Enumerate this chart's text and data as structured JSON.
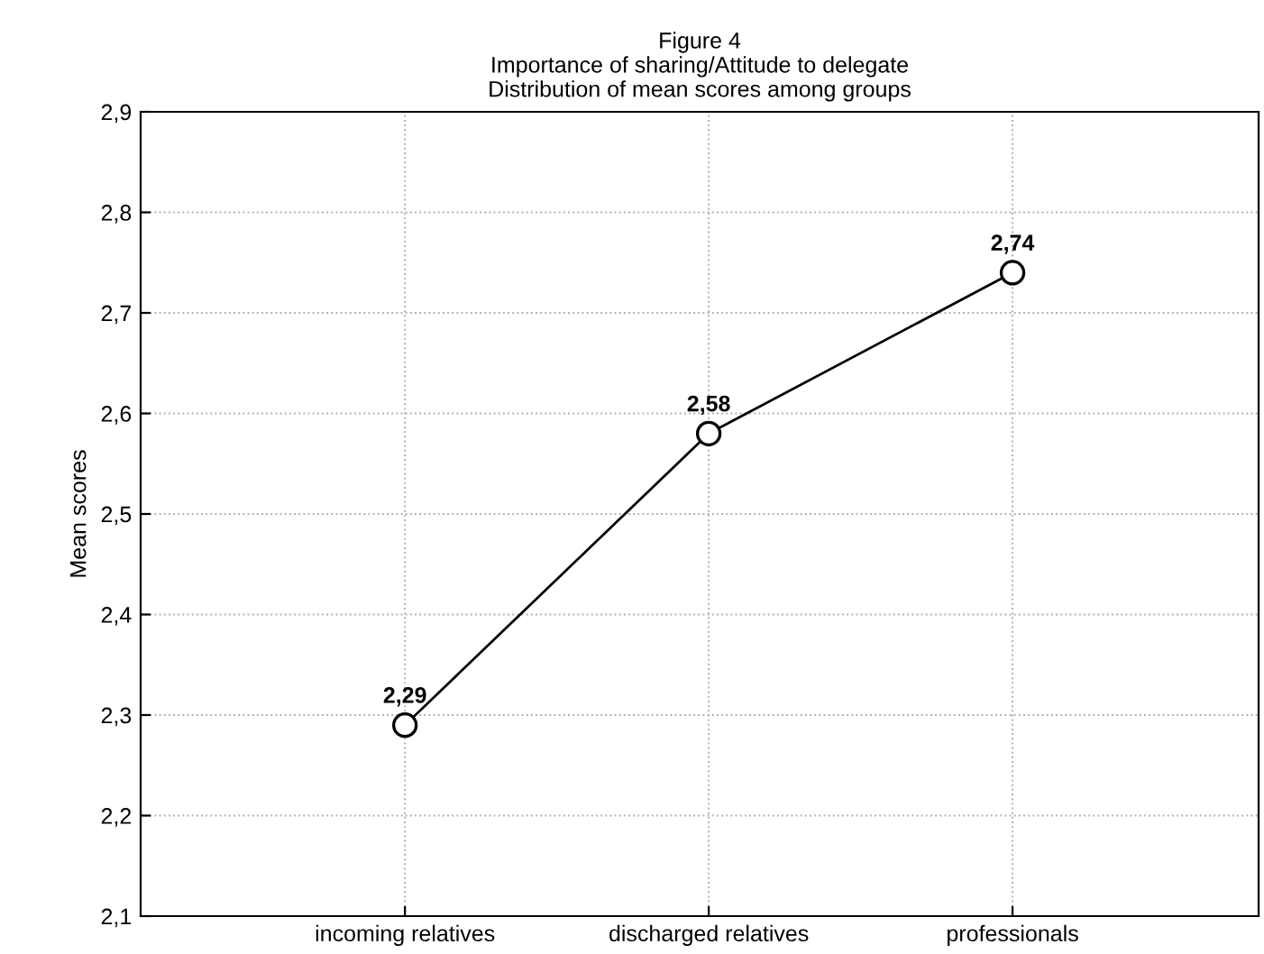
{
  "chart_data": {
    "type": "line",
    "title": "Figure 4\nImportance of sharing/Attitude to delegate\nDistribution of mean scores among groups",
    "ylabel": "Mean scores",
    "categories": [
      "incoming relatives",
      "discharged relatives",
      "professionals"
    ],
    "series": [
      {
        "color": "#000000",
        "values": [
          2.29,
          2.58,
          2.74
        ],
        "value_labels": [
          "2,29",
          "2,58",
          "2,74"
        ]
      }
    ],
    "ylim": [
      2.1,
      2.9
    ],
    "yticks": [
      {
        "value": 2.1,
        "label": "2,1"
      },
      {
        "value": 2.2,
        "label": "2,2"
      },
      {
        "value": 2.3,
        "label": "2,3"
      },
      {
        "value": 2.4,
        "label": "2,4"
      },
      {
        "value": 2.5,
        "label": "2,5"
      },
      {
        "value": 2.6,
        "label": "2,6"
      },
      {
        "value": 2.7,
        "label": "2,7"
      },
      {
        "value": 2.8,
        "label": "2,8"
      },
      {
        "value": 2.9,
        "label": "2,9"
      }
    ],
    "grid": true,
    "marker": "circle",
    "line_style": "solid"
  }
}
